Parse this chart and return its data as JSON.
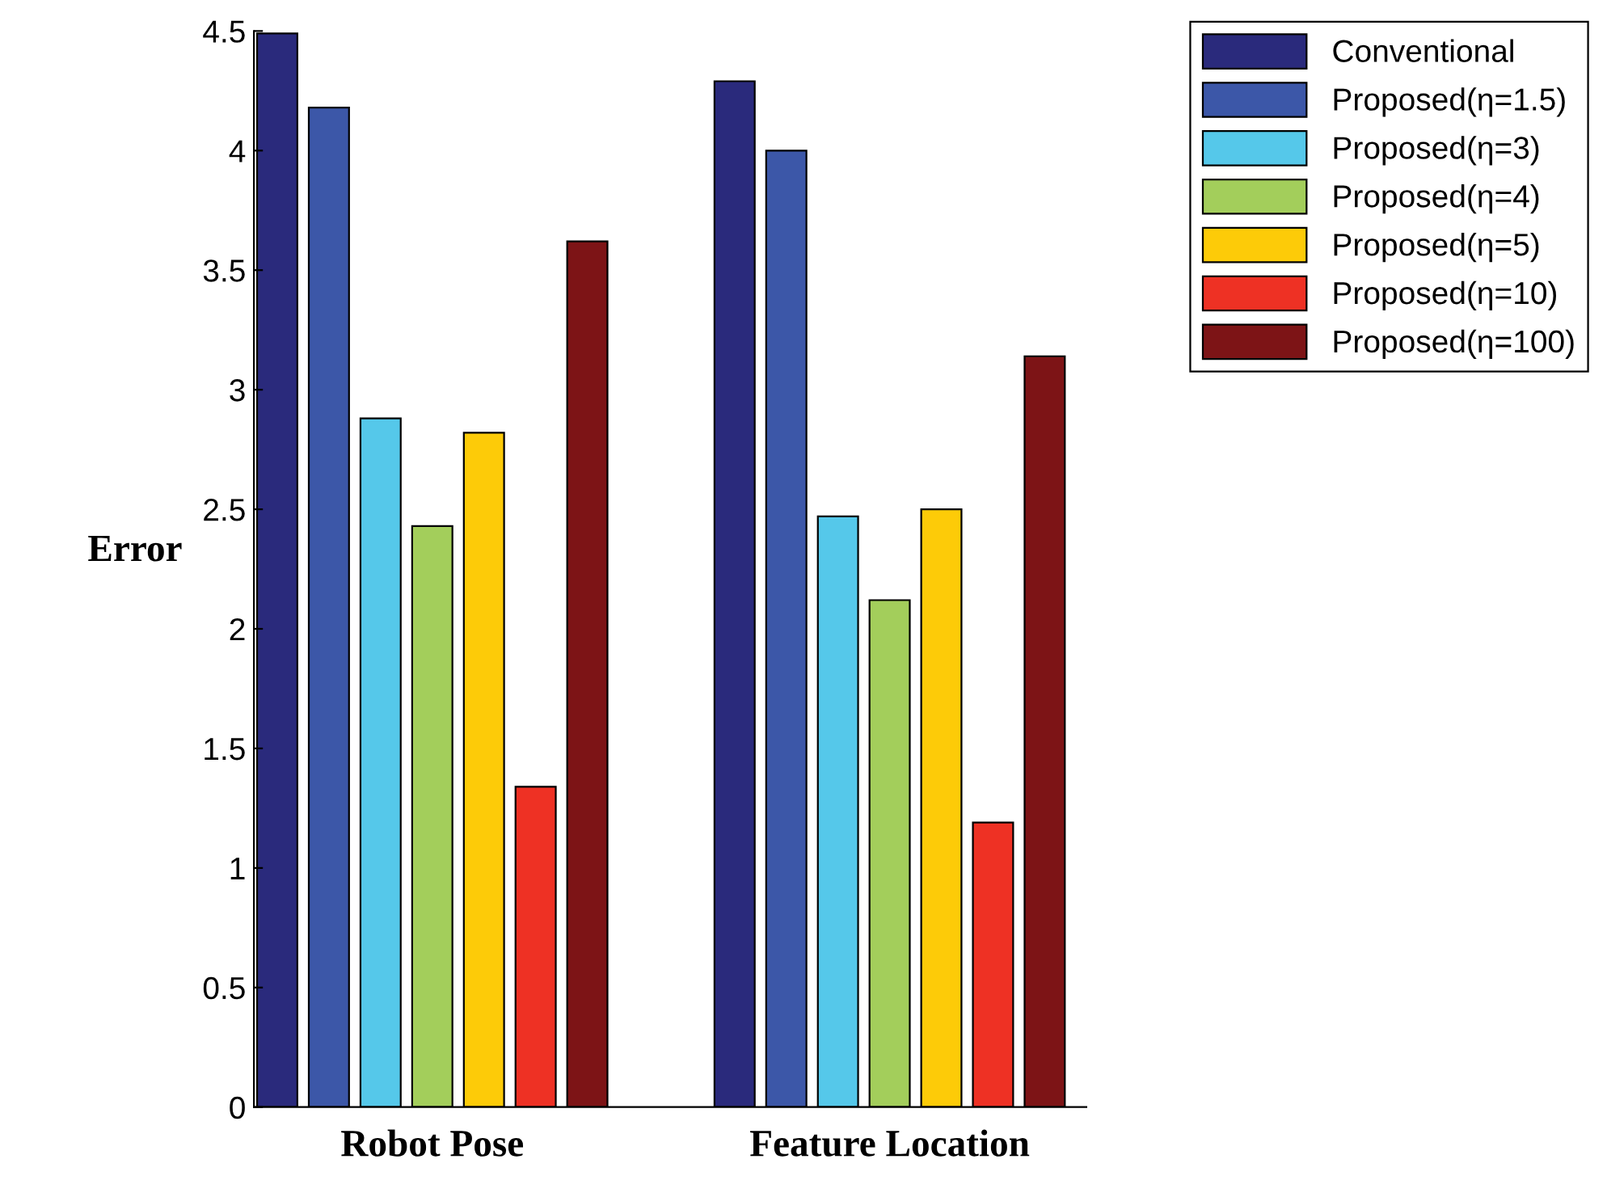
{
  "chart_data": {
    "type": "bar",
    "ylabel": "Error",
    "categories": [
      "Robot Pose",
      "Feature Location"
    ],
    "series": [
      {
        "name": "Conventional",
        "color": "#2a2a7c",
        "values": [
          4.49,
          4.29
        ]
      },
      {
        "name": "Proposed(η=1.5)",
        "color": "#3c57a8",
        "values": [
          4.18,
          4.0
        ]
      },
      {
        "name": "Proposed(η=3)",
        "color": "#55c8ea",
        "values": [
          2.88,
          2.47
        ]
      },
      {
        "name": "Proposed(η=4)",
        "color": "#a3ce5b",
        "values": [
          2.43,
          2.12
        ]
      },
      {
        "name": "Proposed(η=5)",
        "color": "#fdcb08",
        "values": [
          2.82,
          2.5
        ]
      },
      {
        "name": "Proposed(η=10)",
        "color": "#ee3124",
        "values": [
          1.34,
          1.19
        ]
      },
      {
        "name": "Proposed(η=100)",
        "color": "#7d1416",
        "values": [
          3.62,
          3.14
        ]
      }
    ],
    "ylim": [
      0,
      4.5
    ],
    "yticks": [
      0,
      0.5,
      1,
      1.5,
      2,
      2.5,
      3,
      3.5,
      4,
      4.5
    ],
    "legend": "top right",
    "grid": false
  }
}
